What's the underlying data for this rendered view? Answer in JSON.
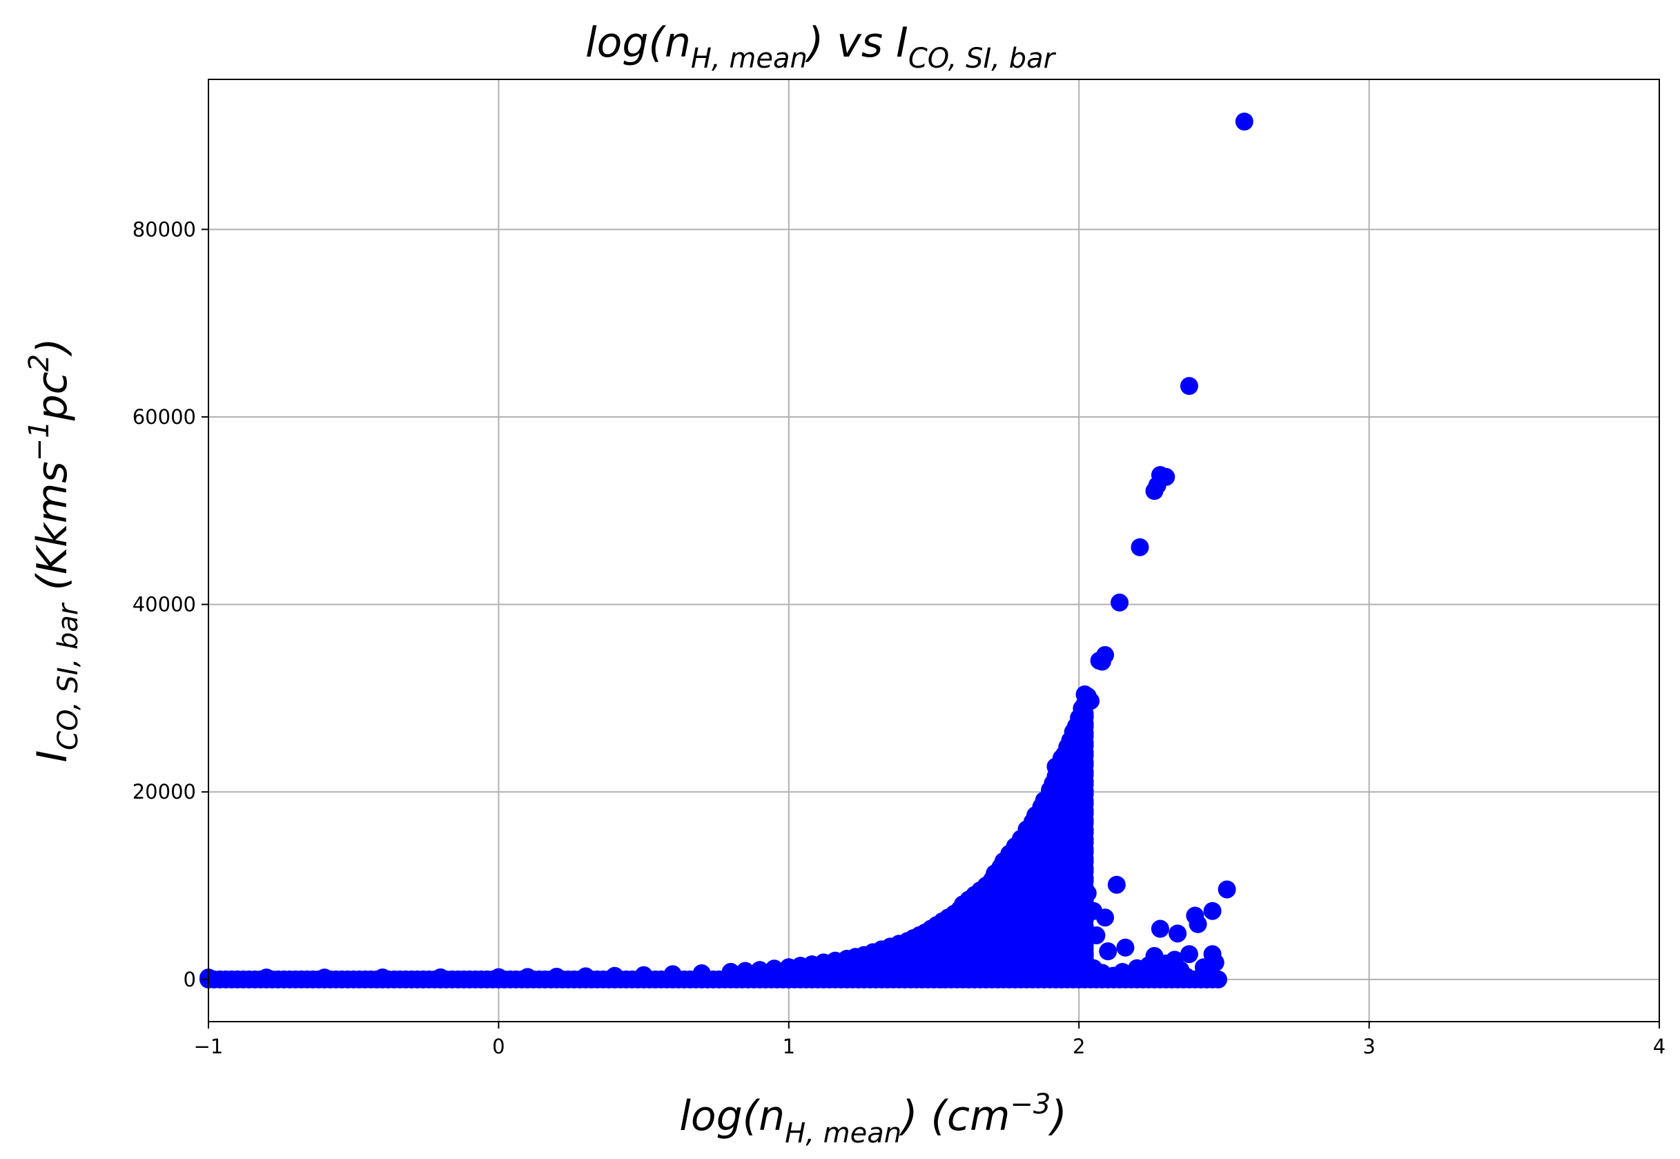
{
  "chart_data": {
    "type": "scatter",
    "title": {
      "prefix": "log(n",
      "prefix_sub": "H, mean",
      "middle": ") vs I",
      "suffix_sub": "CO, SI, bar"
    },
    "xlabel": {
      "prefix": "log(n",
      "sub": "H, mean",
      "mid": ") (cm",
      "sup": "−3",
      "end": ")"
    },
    "ylabel": {
      "prefix": "I",
      "sub": "CO, SI, bar",
      "mid": " (Kkms",
      "sup1": "−1",
      "mid2": "pc",
      "sup2": "2",
      "end": ")"
    },
    "xlim": [
      -1,
      4
    ],
    "ylim": [
      -4500,
      96000
    ],
    "x_ticks": [
      -1,
      0,
      1,
      2,
      3,
      4
    ],
    "x_tick_labels": [
      "−1",
      "0",
      "1",
      "2",
      "3",
      "4"
    ],
    "y_ticks": [
      0,
      20000,
      40000,
      60000,
      80000
    ],
    "y_tick_labels": [
      "0",
      "20000",
      "40000",
      "60000",
      "80000"
    ],
    "grid": true,
    "marker_color": "#0000ff",
    "series": [
      {
        "points": [
          [
            2.57,
            91500
          ],
          [
            2.38,
            63300
          ],
          [
            2.28,
            53800
          ],
          [
            2.3,
            53600
          ],
          [
            2.26,
            52100
          ],
          [
            2.27,
            52700
          ],
          [
            2.21,
            46100
          ],
          [
            2.14,
            40200
          ],
          [
            2.09,
            34600
          ],
          [
            2.07,
            34000
          ],
          [
            2.08,
            33900
          ],
          [
            2.04,
            29700
          ],
          [
            2.03,
            30200
          ],
          [
            2.02,
            30400
          ],
          [
            2.01,
            28900
          ],
          [
            2.02,
            28000
          ],
          [
            2.0,
            27900
          ],
          [
            1.99,
            27000
          ],
          [
            1.98,
            26400
          ],
          [
            1.97,
            25500
          ],
          [
            1.96,
            24800
          ],
          [
            1.95,
            24000
          ],
          [
            1.94,
            23600
          ],
          [
            2.0,
            24400
          ],
          [
            1.96,
            23100
          ],
          [
            1.92,
            22700
          ],
          [
            1.93,
            21700
          ],
          [
            1.91,
            20900
          ],
          [
            1.9,
            20200
          ],
          [
            1.88,
            19100
          ],
          [
            1.87,
            18400
          ],
          [
            1.85,
            17500
          ],
          [
            1.84,
            16800
          ],
          [
            1.82,
            16000
          ],
          [
            1.84,
            15800
          ],
          [
            1.8,
            15000
          ],
          [
            1.78,
            14200
          ],
          [
            1.76,
            13400
          ],
          [
            1.78,
            13000
          ],
          [
            1.74,
            12600
          ],
          [
            1.73,
            12000
          ],
          [
            1.71,
            11300
          ],
          [
            1.7,
            10600
          ],
          [
            1.75,
            10700
          ],
          [
            1.68,
            10000
          ],
          [
            1.66,
            9500
          ],
          [
            1.64,
            9000
          ],
          [
            1.62,
            8500
          ],
          [
            1.6,
            8000
          ],
          [
            1.59,
            7500
          ],
          [
            1.57,
            7000
          ],
          [
            1.55,
            6600
          ],
          [
            1.53,
            6200
          ],
          [
            1.51,
            5800
          ],
          [
            1.49,
            5400
          ],
          [
            1.47,
            5000
          ],
          [
            1.45,
            4700
          ],
          [
            1.43,
            4400
          ],
          [
            1.41,
            4100
          ],
          [
            1.38,
            3800
          ],
          [
            1.35,
            3500
          ],
          [
            1.32,
            3200
          ],
          [
            1.29,
            2900
          ],
          [
            1.26,
            2600
          ],
          [
            1.23,
            2400
          ],
          [
            1.2,
            2200
          ],
          [
            1.16,
            2000
          ],
          [
            1.12,
            1800
          ],
          [
            1.08,
            1600
          ],
          [
            1.04,
            1450
          ],
          [
            1.0,
            1300
          ],
          [
            0.95,
            1150
          ],
          [
            0.9,
            1000
          ],
          [
            0.85,
            900
          ],
          [
            0.8,
            800
          ],
          [
            0.7,
            650
          ],
          [
            0.6,
            550
          ],
          [
            0.5,
            450
          ],
          [
            0.4,
            380
          ],
          [
            0.3,
            330
          ],
          [
            0.2,
            290
          ],
          [
            0.1,
            260
          ],
          [
            0.0,
            240
          ],
          [
            -0.2,
            220
          ],
          [
            -0.4,
            210
          ],
          [
            -0.6,
            200
          ],
          [
            -0.8,
            200
          ],
          [
            -1.0,
            200
          ],
          [
            1.58,
            6500
          ],
          [
            1.56,
            5600
          ],
          [
            1.54,
            4800
          ],
          [
            1.62,
            6200
          ],
          [
            1.66,
            7100
          ],
          [
            1.72,
            8200
          ],
          [
            1.75,
            8200
          ],
          [
            1.7,
            7000
          ],
          [
            1.68,
            6200
          ],
          [
            1.64,
            5000
          ],
          [
            1.6,
            4300
          ],
          [
            1.58,
            3500
          ],
          [
            1.5,
            3200
          ],
          [
            1.45,
            2800
          ],
          [
            1.4,
            2400
          ],
          [
            1.72,
            3900
          ],
          [
            1.74,
            3300
          ],
          [
            1.76,
            2700
          ],
          [
            1.7,
            2100
          ],
          [
            1.66,
            1700
          ],
          [
            1.62,
            1400
          ],
          [
            1.55,
            1300
          ],
          [
            1.5,
            1100
          ],
          [
            2.0,
            8400
          ],
          [
            2.03,
            9200
          ],
          [
            2.13,
            10100
          ],
          [
            2.05,
            7300
          ],
          [
            2.09,
            6600
          ],
          [
            2.01,
            5400
          ],
          [
            2.06,
            4700
          ],
          [
            1.87,
            4700
          ],
          [
            2.16,
            3400
          ],
          [
            2.1,
            3000
          ],
          [
            2.02,
            2800
          ],
          [
            1.95,
            2500
          ],
          [
            1.9,
            2200
          ],
          [
            1.84,
            2600
          ],
          [
            1.8,
            1500
          ],
          [
            2.28,
            5400
          ],
          [
            2.34,
            4900
          ],
          [
            2.4,
            6800
          ],
          [
            2.41,
            5900
          ],
          [
            2.46,
            7300
          ],
          [
            2.51,
            9600
          ],
          [
            2.46,
            2700
          ],
          [
            2.47,
            1800
          ],
          [
            2.43,
            1300
          ],
          [
            2.38,
            2700
          ],
          [
            2.33,
            2100
          ],
          [
            2.3,
            1700
          ],
          [
            2.26,
            2500
          ],
          [
            2.24,
            1500
          ],
          [
            2.2,
            1200
          ],
          [
            2.28,
            900
          ],
          [
            2.31,
            600
          ],
          [
            2.37,
            300
          ],
          [
            2.15,
            800
          ],
          [
            2.12,
            400
          ],
          [
            2.05,
            1200
          ],
          [
            2.08,
            700
          ],
          [
            1.98,
            900
          ],
          [
            1.93,
            600
          ],
          [
            1.88,
            1000
          ],
          [
            2.25,
            300
          ],
          [
            2.18,
            100
          ],
          [
            2.35,
            1000
          ]
        ]
      }
    ]
  }
}
